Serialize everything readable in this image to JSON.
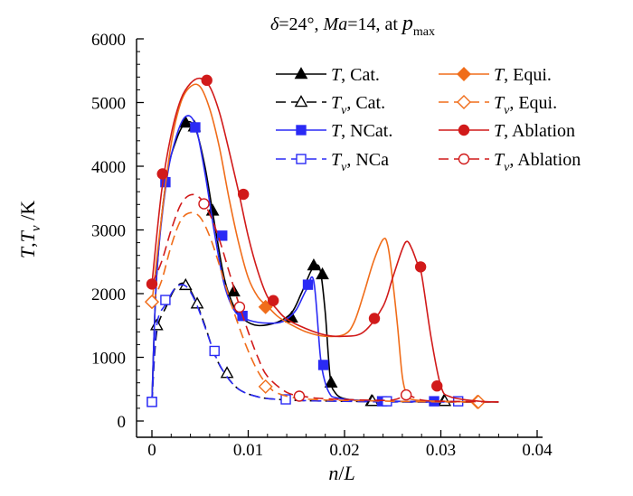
{
  "chart_data": {
    "type": "line",
    "title": {
      "parts": [
        {
          "text": "δ",
          "italic": true
        },
        {
          "text": "=24°, ",
          "italic": false
        },
        {
          "text": "Ma",
          "italic": true
        },
        {
          "text": "=14, at ",
          "italic": false
        },
        {
          "text": "p",
          "italic": true
        }
      ],
      "subscript": "max"
    },
    "xlabel": {
      "main": "n",
      "sep": "/",
      "sub": "L"
    },
    "ylabel": {
      "t": "T",
      "comma": ",",
      "tv": "T",
      "tv_sub": "v",
      "unit": " /K"
    },
    "xlim": [
      0,
      0.04
    ],
    "ylim": [
      0,
      6000
    ],
    "x_ticks": [
      {
        "value": 0,
        "label": "0"
      },
      {
        "value": 0.01,
        "label": "0.01"
      },
      {
        "value": 0.02,
        "label": "0.02"
      },
      {
        "value": 0.03,
        "label": "0.03"
      },
      {
        "value": 0.04,
        "label": "0.04"
      }
    ],
    "y_ticks": [
      {
        "value": 0,
        "label": "0"
      },
      {
        "value": 1000,
        "label": "1000"
      },
      {
        "value": 2000,
        "label": "2000"
      },
      {
        "value": 3000,
        "label": "3000"
      },
      {
        "value": 4000,
        "label": "4000"
      },
      {
        "value": 5000,
        "label": "5000"
      },
      {
        "value": 6000,
        "label": "6000"
      }
    ],
    "series": [
      {
        "name": "T, Cat.",
        "sym": "T",
        "sub": "",
        "tag": ", Cat.",
        "color": "#000000",
        "dash": "solid",
        "marker": "triangle",
        "fill": true,
        "x": [
          0,
          0.0005,
          0.0015,
          0.0025,
          0.0035,
          0.0045,
          0.0055,
          0.0065,
          0.0075,
          0.0085,
          0.0095,
          0.011,
          0.013,
          0.0145,
          0.0155,
          0.0165,
          0.017,
          0.0175,
          0.018,
          0.0185,
          0.019,
          0.02,
          0.022,
          0.025,
          0.03,
          0.036
        ],
        "y": [
          300,
          2300,
          3800,
          4400,
          4680,
          4600,
          4000,
          3100,
          2250,
          1800,
          1600,
          1500,
          1550,
          1700,
          2000,
          2350,
          2450,
          2350,
          1700,
          700,
          450,
          350,
          320,
          310,
          300,
          300
        ],
        "markers": [
          [
            0.0035,
            4680
          ],
          [
            0.0044,
            4620
          ],
          [
            0.0063,
            3300
          ],
          [
            0.0085,
            2030
          ],
          [
            0.0145,
            1620
          ],
          [
            0.0168,
            2440
          ],
          [
            0.0177,
            2300
          ],
          [
            0.0186,
            600
          ],
          [
            0.0228,
            310
          ],
          [
            0.0303,
            310
          ]
        ]
      },
      {
        "name": "Tv, Cat.",
        "sym": "T",
        "sub": "v",
        "tag": ", Cat.",
        "color": "#000000",
        "dash": "long",
        "marker": "triangle",
        "fill": false,
        "x": [
          0,
          0.0005,
          0.0015,
          0.0025,
          0.0035,
          0.0045,
          0.0055,
          0.0065,
          0.0075,
          0.009,
          0.011,
          0.013,
          0.016,
          0.02,
          0.025,
          0.036
        ],
        "y": [
          300,
          1400,
          1800,
          2100,
          2150,
          1900,
          1500,
          1050,
          760,
          500,
          380,
          340,
          320,
          310,
          300,
          300
        ],
        "markers": [
          [
            0.0005,
            1500
          ],
          [
            0.0035,
            2130
          ],
          [
            0.0047,
            1840
          ],
          [
            0.0078,
            750
          ],
          [
            0.0229,
            310
          ],
          [
            0.0304,
            310
          ]
        ]
      },
      {
        "name": "T, NCat.",
        "sym": "T",
        "sub": "",
        "tag": ", NCat.",
        "color": "#2a2af5",
        "dash": "solid",
        "marker": "square",
        "fill": true,
        "x": [
          0,
          0.0005,
          0.0015,
          0.0025,
          0.0035,
          0.0045,
          0.0055,
          0.0065,
          0.0075,
          0.0085,
          0.0095,
          0.011,
          0.013,
          0.014,
          0.015,
          0.016,
          0.0168,
          0.0175,
          0.018,
          0.0185,
          0.019,
          0.021,
          0.025,
          0.036
        ],
        "y": [
          300,
          2300,
          3750,
          4450,
          4780,
          4650,
          3900,
          2950,
          2150,
          1750,
          1620,
          1550,
          1540,
          1600,
          1750,
          2050,
          2200,
          1000,
          600,
          420,
          370,
          330,
          310,
          300
        ],
        "markers": [
          [
            0,
            300
          ],
          [
            0.0014,
            3750
          ],
          [
            0.0045,
            4610
          ],
          [
            0.0073,
            2910
          ],
          [
            0.0094,
            1650
          ],
          [
            0.0162,
            2140
          ],
          [
            0.0178,
            880
          ],
          [
            0.0239,
            310
          ],
          [
            0.0293,
            310
          ]
        ]
      },
      {
        "name": "Tv, NCa",
        "sym": "T",
        "sub": "v",
        "tag": ", NCa",
        "color": "#2a2af5",
        "dash": "long",
        "marker": "square",
        "fill": false,
        "x": [
          0,
          0.0005,
          0.0015,
          0.0025,
          0.0035,
          0.0045,
          0.0055,
          0.0065,
          0.0075,
          0.009,
          0.011,
          0.013,
          0.016,
          0.02,
          0.025,
          0.036
        ],
        "y": [
          300,
          1500,
          1850,
          2100,
          2120,
          1880,
          1480,
          1060,
          760,
          500,
          380,
          340,
          320,
          310,
          300,
          300
        ],
        "markers": [
          [
            0,
            300
          ],
          [
            0.0014,
            1900
          ],
          [
            0.0065,
            1100
          ],
          [
            0.0139,
            340
          ],
          [
            0.0244,
            310
          ],
          [
            0.0318,
            310
          ]
        ]
      },
      {
        "name": "T, Equi.",
        "sym": "T",
        "sub": "",
        "tag": ", Equi.",
        "color": "#f06d1a",
        "dash": "solid",
        "marker": "diamond",
        "fill": true,
        "x": [
          0,
          0.001,
          0.002,
          0.003,
          0.004,
          0.005,
          0.006,
          0.007,
          0.008,
          0.009,
          0.01,
          0.011,
          0.012,
          0.013,
          0.014,
          0.016,
          0.018,
          0.02,
          0.021,
          0.022,
          0.023,
          0.024,
          0.0245,
          0.025,
          0.0255,
          0.026,
          0.0265,
          0.027,
          0.028,
          0.03,
          0.034,
          0.036
        ],
        "y": [
          1850,
          3200,
          4350,
          5000,
          5250,
          5250,
          4900,
          4300,
          3500,
          2800,
          2250,
          1950,
          1800,
          1650,
          1550,
          1400,
          1330,
          1360,
          1550,
          2000,
          2500,
          2850,
          2750,
          2200,
          1500,
          700,
          400,
          340,
          320,
          310,
          300,
          300
        ],
        "markers": [
          [
            0,
            1870
          ],
          [
            0.0118,
            1790
          ],
          [
            0.0338,
            300
          ]
        ]
      },
      {
        "name": "Tv, Equi.",
        "sym": "T",
        "sub": "v",
        "tag": ", Equi.",
        "color": "#f06d1a",
        "dash": "long",
        "marker": "diamond",
        "fill": false,
        "x": [
          0,
          0.001,
          0.002,
          0.003,
          0.004,
          0.005,
          0.006,
          0.007,
          0.008,
          0.009,
          0.01,
          0.011,
          0.012,
          0.013,
          0.015,
          0.018,
          0.022,
          0.025,
          0.03,
          0.036
        ],
        "y": [
          1850,
          2200,
          2750,
          3150,
          3270,
          3200,
          2900,
          2450,
          1950,
          1500,
          1100,
          780,
          560,
          440,
          360,
          330,
          320,
          310,
          300,
          300
        ],
        "markers": [
          [
            0,
            1870
          ],
          [
            0.0118,
            540
          ],
          [
            0.0339,
            300
          ]
        ]
      },
      {
        "name": "T, Ablation",
        "sym": "T",
        "sub": "",
        "tag": ", Ablation",
        "color": "#d11a1a",
        "dash": "solid",
        "marker": "circle",
        "fill": true,
        "x": [
          0,
          0.001,
          0.002,
          0.003,
          0.004,
          0.005,
          0.006,
          0.007,
          0.008,
          0.009,
          0.01,
          0.011,
          0.012,
          0.013,
          0.014,
          0.016,
          0.018,
          0.02,
          0.022,
          0.024,
          0.025,
          0.026,
          0.0265,
          0.027,
          0.0275,
          0.028,
          0.029,
          0.03,
          0.031,
          0.034,
          0.036
        ],
        "y": [
          2150,
          3600,
          4500,
          5050,
          5300,
          5380,
          5250,
          4850,
          4250,
          3600,
          2900,
          2350,
          1950,
          1750,
          1600,
          1450,
          1350,
          1330,
          1400,
          1800,
          2250,
          2700,
          2820,
          2700,
          2500,
          2300,
          1300,
          550,
          380,
          310,
          300
        ],
        "markers": [
          [
            0,
            2150
          ],
          [
            0.0011,
            3880
          ],
          [
            0.0057,
            5350
          ],
          [
            0.0095,
            3560
          ],
          [
            0.0126,
            1890
          ],
          [
            0.0231,
            1610
          ],
          [
            0.0279,
            2420
          ],
          [
            0.0296,
            550
          ]
        ]
      },
      {
        "name": "Tv, Ablation",
        "sym": "T",
        "sub": "v",
        "tag": ", Ablation",
        "color": "#d11a1a",
        "dash": "long",
        "marker": "circle",
        "fill": false,
        "x": [
          0,
          0.001,
          0.002,
          0.003,
          0.004,
          0.005,
          0.006,
          0.007,
          0.008,
          0.009,
          0.01,
          0.011,
          0.012,
          0.014,
          0.016,
          0.018,
          0.022,
          0.025,
          0.0265,
          0.028,
          0.03,
          0.036
        ],
        "y": [
          2150,
          2500,
          3000,
          3400,
          3550,
          3500,
          3250,
          2850,
          2350,
          1850,
          1400,
          1000,
          700,
          450,
          380,
          350,
          330,
          330,
          400,
          330,
          310,
          300
        ],
        "markers": [
          [
            0.0054,
            3410
          ],
          [
            0.0091,
            1790
          ],
          [
            0.0153,
            390
          ],
          [
            0.0264,
            410
          ]
        ]
      }
    ],
    "legend": {
      "position": "top-right",
      "columns": [
        [
          0,
          1,
          2,
          3
        ],
        [
          4,
          5,
          6,
          7
        ]
      ]
    }
  }
}
